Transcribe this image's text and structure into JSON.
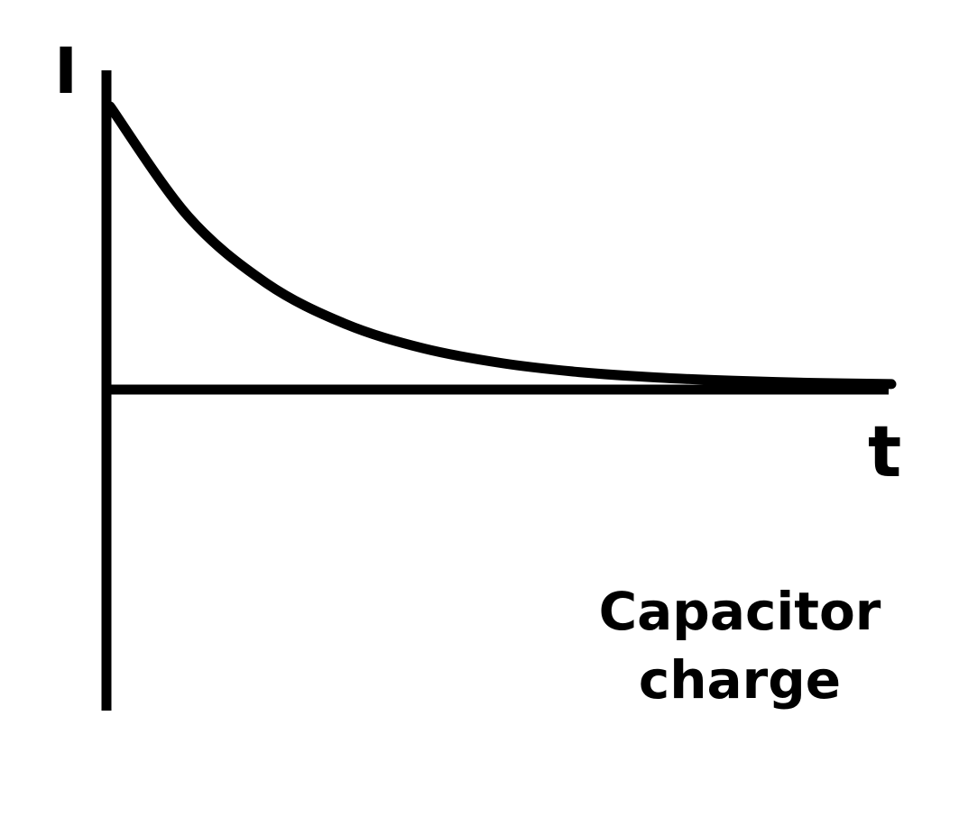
{
  "chart_data": {
    "type": "line",
    "title": "",
    "xlabel": "t",
    "ylabel": "I",
    "caption": [
      "Capacitor",
      "charge"
    ],
    "axes_ticks": false,
    "grid": false,
    "curve_shape": "exponential-decay",
    "line_color": "#000000",
    "series": [
      {
        "points": [
          {
            "x": 0.0,
            "y": 1.0
          },
          {
            "x": 0.5,
            "y": 0.6065
          },
          {
            "x": 1.0,
            "y": 0.3679
          },
          {
            "x": 1.5,
            "y": 0.2231
          },
          {
            "x": 2.0,
            "y": 0.1353
          },
          {
            "x": 2.5,
            "y": 0.0821
          },
          {
            "x": 3.0,
            "y": 0.0498
          },
          {
            "x": 3.5,
            "y": 0.0302
          },
          {
            "x": 4.0,
            "y": 0.0183
          },
          {
            "x": 4.5,
            "y": 0.0111
          },
          {
            "x": 5.0,
            "y": 0.0067
          }
        ]
      }
    ]
  }
}
